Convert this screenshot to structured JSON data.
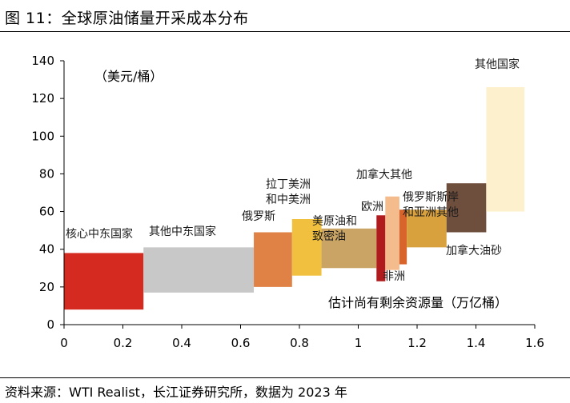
{
  "title": "图 11：全球原油储量开采成本分布",
  "source": "资料来源：WTI Realist，长江证券研究所，数据为 2023 年",
  "chart_data": {
    "type": "bar",
    "subtype": "variable-width cost curve",
    "ylabel": "（美元/桶）",
    "xlabel": "估计尚有剩余资源量（万亿桶）",
    "xlim": [
      0,
      1.6
    ],
    "ylim": [
      0,
      140
    ],
    "xticks": [
      0,
      0.2,
      0.4,
      0.6,
      0.8,
      1,
      1.2,
      1.4,
      1.6
    ],
    "yticks": [
      0,
      20,
      40,
      60,
      80,
      100,
      120,
      140
    ],
    "segments": [
      {
        "name": "核心中东国家",
        "x0": 0.0,
        "x1": 0.27,
        "low": 8,
        "high": 38,
        "color": "#d42a20"
      },
      {
        "name": "其他中东国家",
        "x0": 0.27,
        "x1": 0.645,
        "low": 17,
        "high": 41,
        "color": "#c8c8c8"
      },
      {
        "name": "俄罗斯",
        "x0": 0.645,
        "x1": 0.775,
        "low": 20,
        "high": 49,
        "color": "#e08245"
      },
      {
        "name": "拉丁美洲\n和中美洲",
        "x0": 0.775,
        "x1": 0.875,
        "low": 26,
        "high": 56,
        "color": "#f2c03f"
      },
      {
        "name": "美原油和\n致密油",
        "x0": 0.875,
        "x1": 1.062,
        "low": 30,
        "high": 51,
        "color": "#c9a465"
      },
      {
        "name": "欧洲",
        "x0": 1.062,
        "x1": 1.092,
        "low": 23,
        "high": 58,
        "color": "#b01c1e"
      },
      {
        "name": "加拿大其他",
        "x0": 1.092,
        "x1": 1.14,
        "low": 29,
        "high": 68,
        "color": "#f4bc8c"
      },
      {
        "name": "非洲",
        "x0": 1.14,
        "x1": 1.165,
        "low": 32,
        "high": 61,
        "color": "#d8632b"
      },
      {
        "name": "俄罗斯斯岸\n和亚洲其他",
        "x0": 1.165,
        "x1": 1.3,
        "low": 41,
        "high": 61,
        "color": "#d9a13e"
      },
      {
        "name": "加拿大油砂",
        "x0": 1.3,
        "x1": 1.435,
        "low": 49,
        "high": 75,
        "color": "#6e4e3d"
      },
      {
        "name": "其他国家",
        "x0": 1.435,
        "x1": 1.565,
        "low": 60,
        "high": 126,
        "color": "#fdf1cd"
      }
    ],
    "labels": {
      "core_me": "核心中东国家",
      "other_me": "其他中东国家",
      "russia": "俄罗斯",
      "latam_1": "拉丁美洲",
      "latam_2": "和中美洲",
      "us_1": "美原油和",
      "us_2": "致密油",
      "europe": "欧洲",
      "canada_other": "加拿大其他",
      "africa": "非洲",
      "rus_asia_1": "俄罗斯斯岸",
      "rus_asia_2": "和亚洲其他",
      "oil_sands": "加拿大油砂",
      "others": "其他国家"
    }
  }
}
